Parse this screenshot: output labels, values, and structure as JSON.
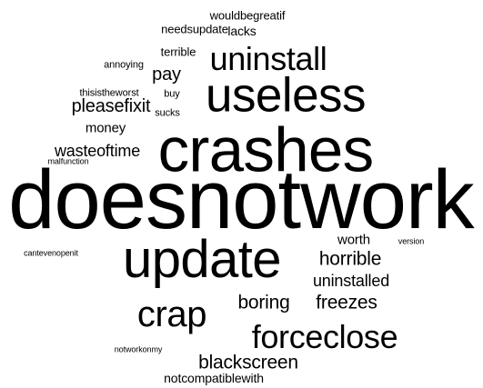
{
  "words": [
    "doesnotwork",
    "crashes",
    "update",
    "useless",
    "crap",
    "forceclose",
    "uninstall",
    "blackscreen",
    "horrible",
    "boring",
    "freezes",
    "pleasefixit",
    "pay",
    "wasteoftime",
    "uninstalled",
    "worth",
    "money",
    "notcompatiblewith",
    "lacks",
    "needsupdate",
    "wouldbegreatif",
    "terrible",
    "annoying",
    "thisistheworst",
    "buy",
    "sucks",
    "malfunction",
    "cantevenopenit",
    "version",
    "notworkonmy"
  ]
}
